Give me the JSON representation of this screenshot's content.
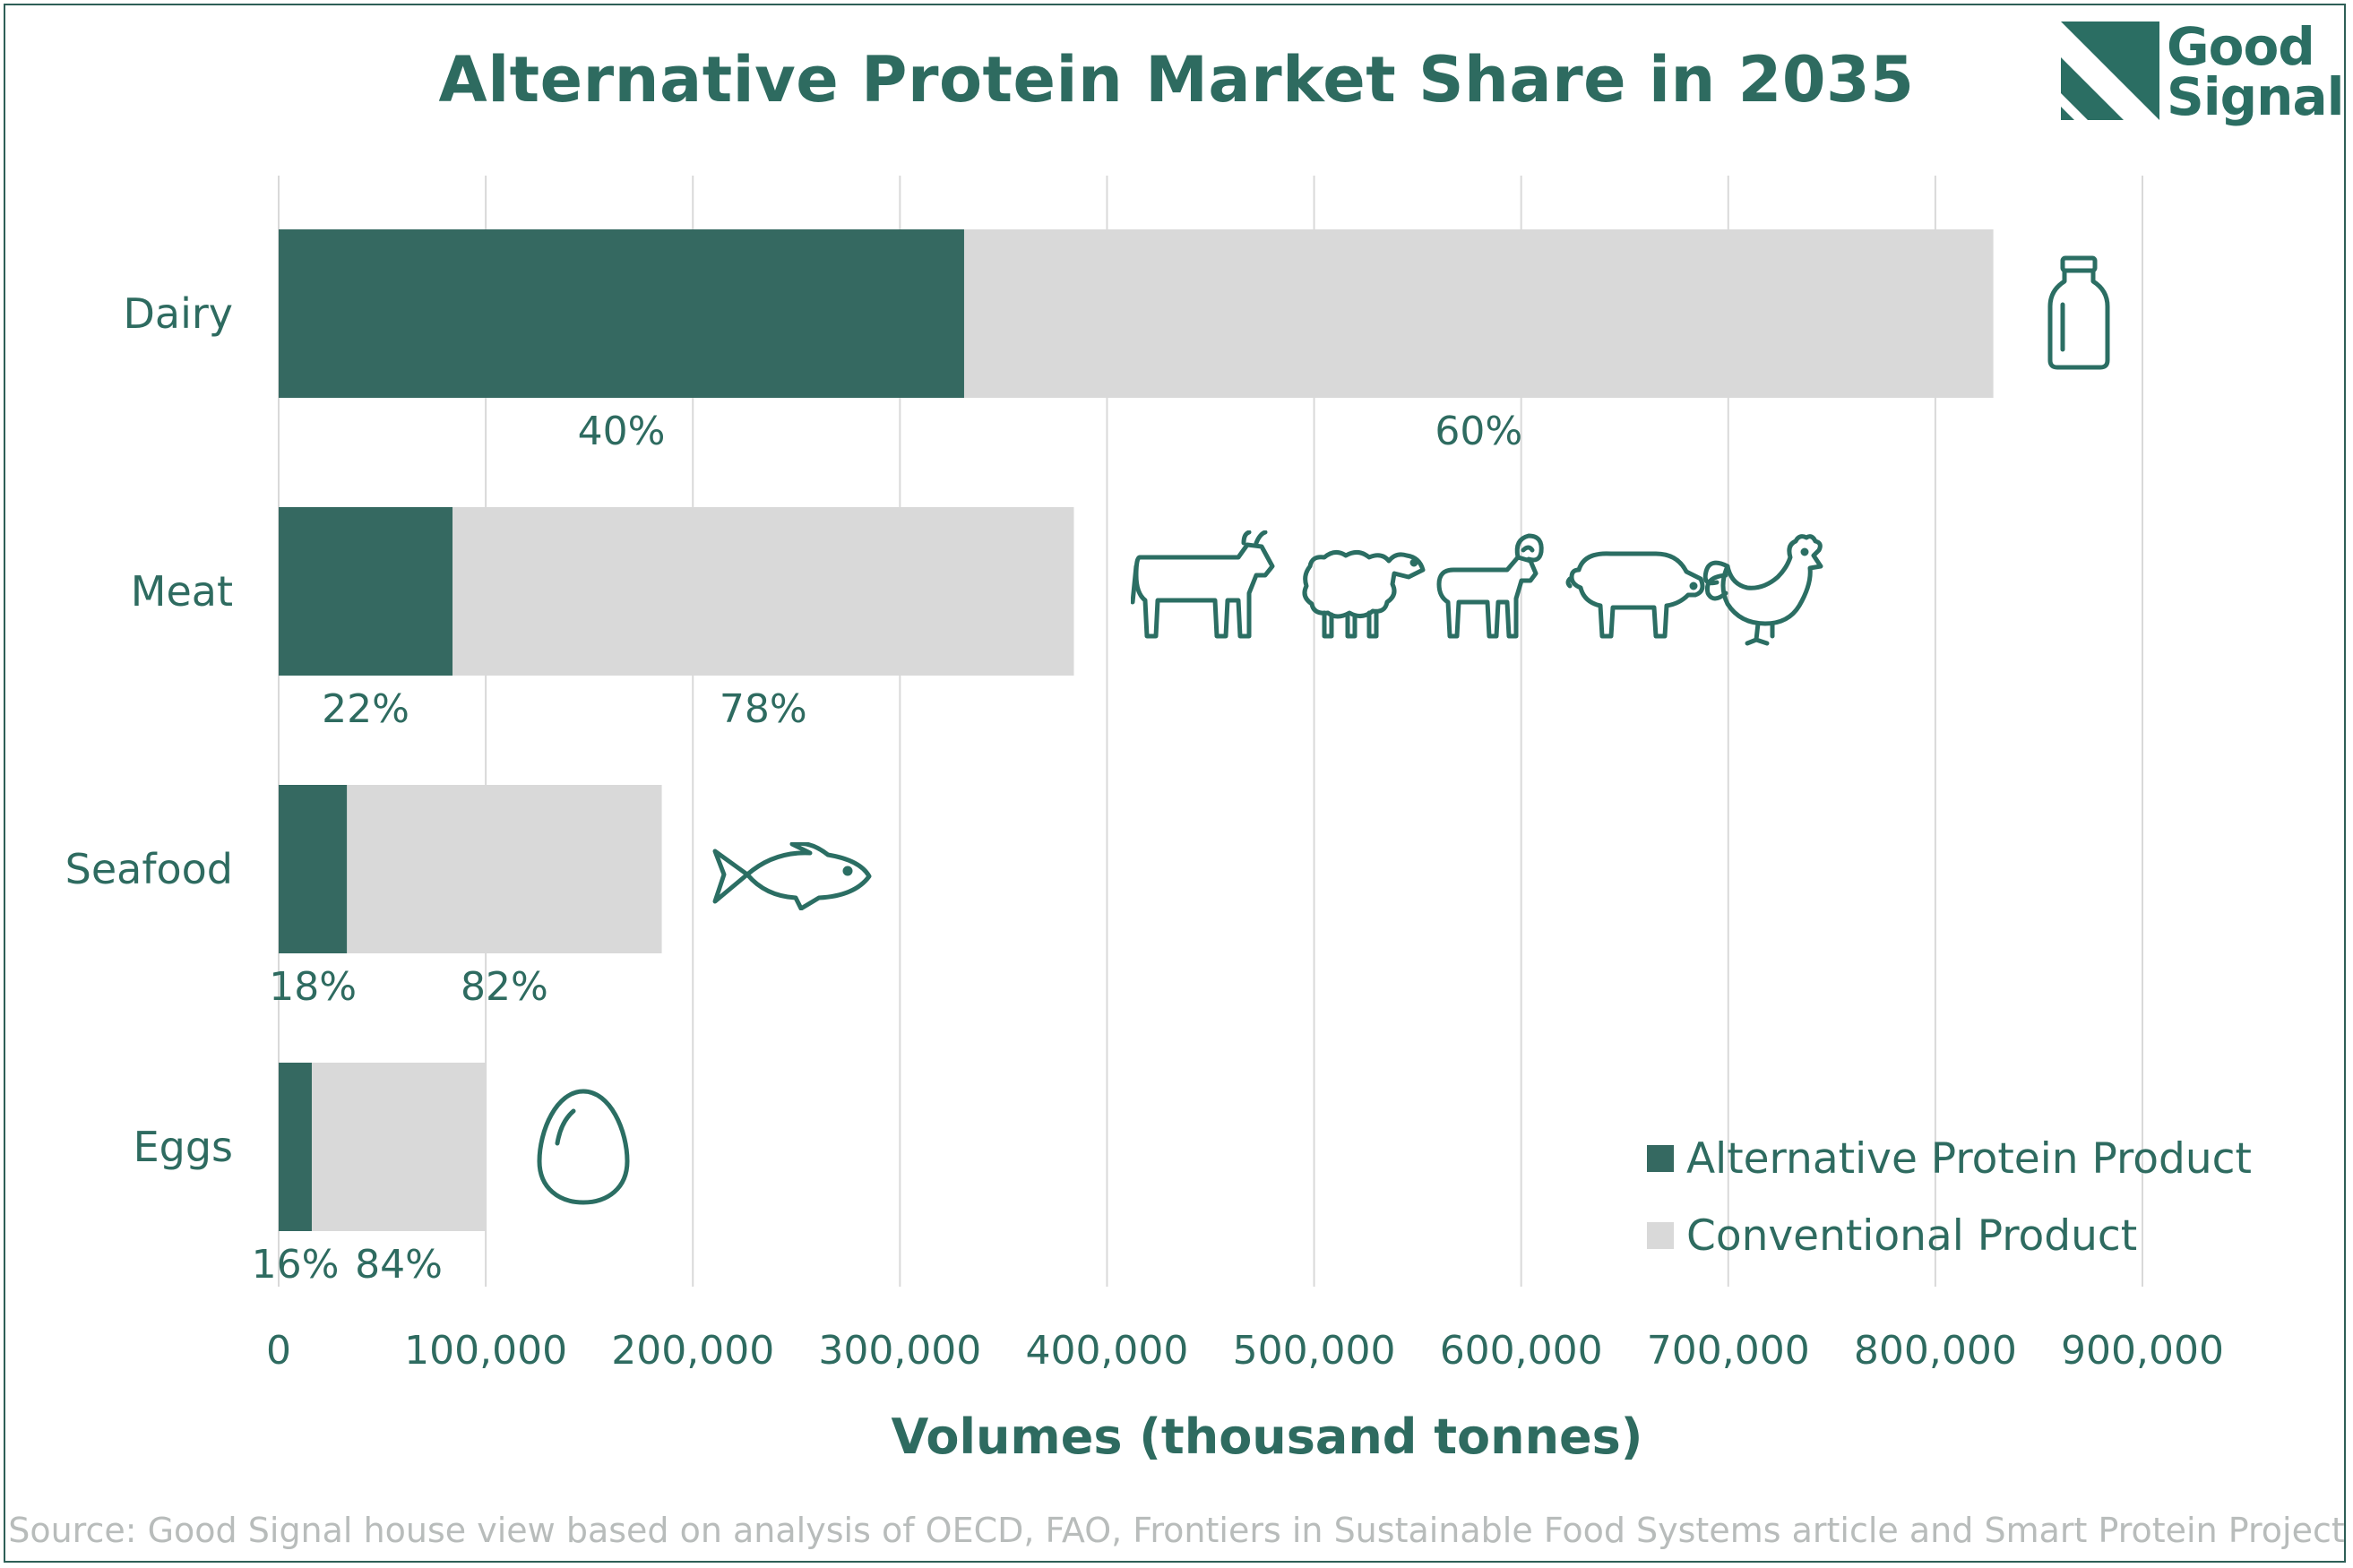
{
  "title": "Alternative Protein Market Share in 2035",
  "logo": {
    "line1": "Good",
    "line2": "Signal"
  },
  "source": "Source: Good Signal house view based on analysis of OECD, FAO, Frontiers in Sustainable Food Systems article and Smart Protein Project",
  "colors": {
    "alternative": "#356961",
    "conventional": "#d9d9d9",
    "text": "#2e6b60",
    "grid": "#d9d9d9"
  },
  "chart_data": {
    "type": "bar",
    "orientation": "horizontal",
    "stacked": true,
    "title": "Alternative Protein Market Share in 2035",
    "xlabel": "Volumes (thousand tonnes)",
    "ylabel": "",
    "xlim": [
      0,
      900000
    ],
    "x_ticks": [
      0,
      100000,
      200000,
      300000,
      400000,
      500000,
      600000,
      700000,
      800000,
      900000
    ],
    "x_tick_labels": [
      "0",
      "100,000",
      "200,000",
      "300,000",
      "400,000",
      "500,000",
      "600,000",
      "700,000",
      "800,000",
      "900,000"
    ],
    "grid": true,
    "legend_position": "bottom-right",
    "categories": [
      "Dairy",
      "Meat",
      "Seafood",
      "Eggs"
    ],
    "series": [
      {
        "name": "Alternative Protein Product",
        "values": [
          331000,
          84000,
          33000,
          16000
        ],
        "share_labels": [
          "40%",
          "22%",
          "18%",
          "16%"
        ]
      },
      {
        "name": "Conventional Product",
        "values": [
          497000,
          300000,
          152000,
          84000
        ],
        "share_labels": [
          "60%",
          "78%",
          "82%",
          "84%"
        ]
      }
    ],
    "icons": [
      "milk-bottle-icon",
      "livestock-icons",
      "fish-icon",
      "egg-icon"
    ]
  }
}
